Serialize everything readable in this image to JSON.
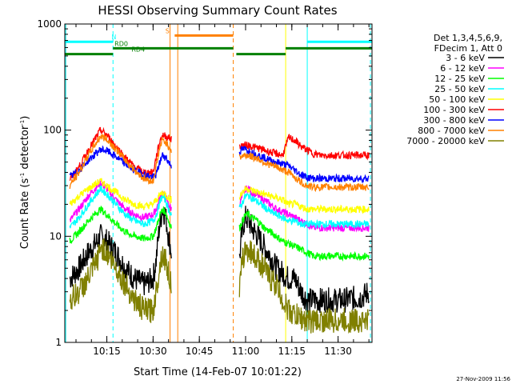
{
  "chart_data": {
    "type": "line",
    "title": "HESSI Observing Summary Count Rates",
    "xlabel": "Start Time (14-Feb-07 10:01:22)",
    "ylabel_main": "Count Rate (s",
    "ylabel_sup1": "-1",
    "ylabel_mid": " detector",
    "ylabel_sup2": "-1",
    "ylabel_end": ")",
    "y_scale": "log",
    "ylim": [
      1,
      1000
    ],
    "xlim": [
      "10:01:22",
      "11:41:00"
    ],
    "x_ticks": [
      {
        "label": "10:15",
        "t": "10:15"
      },
      {
        "label": "10:30",
        "t": "10:30"
      },
      {
        "label": "10:45",
        "t": "10:45"
      },
      {
        "label": "11:00",
        "t": "11:00"
      },
      {
        "label": "11:15",
        "t": "11:15"
      },
      {
        "label": "11:30",
        "t": "11:30"
      }
    ],
    "y_ticks": [
      {
        "label": "1",
        "v": 1
      },
      {
        "label": "10",
        "v": 10
      },
      {
        "label": "100",
        "v": 100
      },
      {
        "label": "1000",
        "v": 1000
      }
    ],
    "legend_header": [
      "Det 1,3,4,5,6,9,",
      "FDecim 1, Att 0"
    ],
    "legend_position": "right",
    "footer_date": "27-Nov-2009 11:56",
    "segments": [
      {
        "start": "10:01:22",
        "end": "10:36:30"
      },
      {
        "start": "10:57:30",
        "end": "11:41:00"
      }
    ],
    "series": [
      {
        "name": "3 - 6 keV",
        "color": "#000000",
        "x": [
          "10:03",
          "10:06",
          "10:09",
          "10:12",
          "10:13",
          "10:15",
          "10:18",
          "10:21",
          "10:24",
          "10:27",
          "10:30",
          "10:31",
          "10:32",
          "10:33",
          "10:34",
          "10:35",
          "10:36",
          "10:58",
          "10:59",
          "11:00",
          "11:01",
          "11:02",
          "11:04",
          "11:06",
          "11:08",
          "11:10",
          "11:12",
          "11:14",
          "11:16",
          "11:18",
          "11:20",
          "11:22",
          "11:24",
          "11:26",
          "11:28",
          "11:30",
          "11:32",
          "11:34",
          "11:36",
          "11:38",
          "11:40"
        ],
        "y": [
          4,
          5,
          7,
          9,
          10,
          9,
          7,
          5,
          4,
          3.5,
          4,
          6,
          12,
          18,
          16,
          10,
          7,
          6,
          12,
          15,
          14,
          12,
          10,
          8,
          6.5,
          5,
          4.5,
          4,
          4,
          3,
          2.5,
          2.5,
          2.5,
          2.5,
          2.5,
          2.5,
          2.5,
          2.6,
          2.6,
          2.7,
          3
        ]
      },
      {
        "name": "6 - 12 keV",
        "color": "#ff00ff",
        "x": [
          "10:03",
          "10:06",
          "10:09",
          "10:12",
          "10:13",
          "10:15",
          "10:18",
          "10:21",
          "10:24",
          "10:27",
          "10:30",
          "10:31",
          "10:32",
          "10:33",
          "10:34",
          "10:35",
          "10:36",
          "10:58",
          "10:59",
          "11:00",
          "11:01",
          "11:02",
          "11:04",
          "11:06",
          "11:08",
          "11:10",
          "11:12",
          "11:14",
          "11:16",
          "11:18",
          "11:20",
          "11:22",
          "11:24",
          "11:26",
          "11:28",
          "11:30",
          "11:32",
          "11:34",
          "11:36",
          "11:38",
          "11:40"
        ],
        "y": [
          14,
          18,
          24,
          30,
          32,
          28,
          22,
          18,
          16,
          15,
          16,
          18,
          22,
          26,
          24,
          20,
          18,
          20,
          24,
          28,
          28,
          26,
          24,
          22,
          20,
          18,
          17,
          16,
          15,
          14,
          13,
          12,
          12,
          12,
          12,
          12,
          12,
          12,
          12,
          12,
          12
        ]
      },
      {
        "name": "12 - 25 keV",
        "color": "#00ff00",
        "x": [
          "10:03",
          "10:06",
          "10:09",
          "10:12",
          "10:13",
          "10:15",
          "10:18",
          "10:21",
          "10:24",
          "10:27",
          "10:30",
          "10:31",
          "10:32",
          "10:33",
          "10:34",
          "10:35",
          "10:36",
          "10:58",
          "10:59",
          "11:00",
          "11:01",
          "11:02",
          "11:04",
          "11:06",
          "11:08",
          "11:10",
          "11:12",
          "11:14",
          "11:16",
          "11:18",
          "11:20",
          "11:22",
          "11:24",
          "11:26",
          "11:28",
          "11:30",
          "11:32",
          "11:34",
          "11:36",
          "11:38",
          "11:40"
        ],
        "y": [
          9,
          11,
          14,
          17,
          18,
          16,
          13,
          11,
          10,
          9.5,
          10,
          12,
          15,
          18,
          17,
          14,
          12,
          12,
          14,
          16,
          16,
          15,
          14,
          12,
          11,
          10,
          9,
          8.5,
          8,
          7.5,
          7,
          6.5,
          6.5,
          6.5,
          6.5,
          6.5,
          6.5,
          6.5,
          6.5,
          6.5,
          6.5
        ]
      },
      {
        "name": "25 - 50 keV",
        "color": "#00ffff",
        "x": [
          "10:03",
          "10:06",
          "10:09",
          "10:12",
          "10:13",
          "10:15",
          "10:18",
          "10:21",
          "10:24",
          "10:27",
          "10:30",
          "10:31",
          "10:32",
          "10:33",
          "10:34",
          "10:35",
          "10:36",
          "10:58",
          "10:59",
          "11:00",
          "11:01",
          "11:02",
          "11:04",
          "11:06",
          "11:08",
          "11:10",
          "11:12",
          "11:14",
          "11:16",
          "11:18",
          "11:20",
          "11:22",
          "11:24",
          "11:26",
          "11:28",
          "11:30",
          "11:32",
          "11:34",
          "11:36",
          "11:38",
          "11:40"
        ],
        "y": [
          12,
          15,
          20,
          26,
          28,
          25,
          20,
          16,
          14,
          13,
          14,
          16,
          20,
          24,
          22,
          18,
          16,
          18,
          21,
          24,
          24,
          23,
          21,
          19,
          17,
          16,
          15,
          14,
          14,
          13,
          13,
          13,
          13,
          13,
          13,
          13,
          13,
          13,
          13,
          13,
          13
        ]
      },
      {
        "name": "50 - 100 keV",
        "color": "#ffff00",
        "x": [
          "10:03",
          "10:06",
          "10:09",
          "10:12",
          "10:13",
          "10:15",
          "10:18",
          "10:21",
          "10:24",
          "10:27",
          "10:30",
          "10:31",
          "10:32",
          "10:33",
          "10:34",
          "10:35",
          "10:36",
          "10:58",
          "10:59",
          "11:00",
          "11:01",
          "11:02",
          "11:04",
          "11:06",
          "11:08",
          "11:10",
          "11:12",
          "11:14",
          "11:16",
          "11:18",
          "11:20",
          "11:22",
          "11:24",
          "11:26",
          "11:28",
          "11:30",
          "11:32",
          "11:34",
          "11:36",
          "11:38",
          "11:40"
        ],
        "y": [
          20,
          24,
          28,
          32,
          33,
          30,
          26,
          22,
          20,
          19,
          20,
          22,
          24,
          26,
          25,
          23,
          22,
          24,
          26,
          28,
          28,
          27,
          26,
          25,
          24,
          23,
          22,
          20,
          20,
          19,
          18,
          18,
          18,
          18,
          18,
          18,
          18,
          18,
          18,
          18,
          18
        ]
      },
      {
        "name": "100 - 300 keV",
        "color": "#ff0000",
        "x": [
          "10:03",
          "10:06",
          "10:09",
          "10:12",
          "10:13",
          "10:15",
          "10:18",
          "10:21",
          "10:24",
          "10:27",
          "10:30",
          "10:31",
          "10:32",
          "10:33",
          "10:34",
          "10:35",
          "10:36",
          "10:58",
          "10:59",
          "11:00",
          "11:01",
          "11:02",
          "11:04",
          "11:06",
          "11:08",
          "11:10",
          "11:12",
          "11:14",
          "11:16",
          "11:18",
          "11:20",
          "11:22",
          "11:24",
          "11:26",
          "11:28",
          "11:30",
          "11:32",
          "11:34",
          "11:36",
          "11:38",
          "11:40"
        ],
        "y": [
          34,
          45,
          65,
          90,
          100,
          90,
          70,
          55,
          45,
          40,
          40,
          55,
          75,
          90,
          88,
          85,
          82,
          70,
          72,
          72,
          72,
          70,
          68,
          65,
          62,
          60,
          58,
          85,
          80,
          70,
          65,
          60,
          58,
          58,
          58,
          58,
          58,
          58,
          58,
          58,
          58
        ]
      },
      {
        "name": "300 - 800 keV",
        "color": "#0000ff",
        "x": [
          "10:03",
          "10:06",
          "10:09",
          "10:12",
          "10:13",
          "10:15",
          "10:18",
          "10:21",
          "10:24",
          "10:27",
          "10:30",
          "10:31",
          "10:32",
          "10:33",
          "10:34",
          "10:35",
          "10:36",
          "10:58",
          "10:59",
          "11:00",
          "11:01",
          "11:02",
          "11:04",
          "11:06",
          "11:08",
          "11:10",
          "11:12",
          "11:14",
          "11:16",
          "11:18",
          "11:20",
          "11:22",
          "11:24",
          "11:26",
          "11:28",
          "11:30",
          "11:32",
          "11:34",
          "11:36",
          "11:38",
          "11:40"
        ],
        "y": [
          36,
          42,
          52,
          62,
          66,
          64,
          56,
          48,
          42,
          38,
          36,
          38,
          48,
          58,
          56,
          50,
          46,
          62,
          66,
          66,
          64,
          62,
          58,
          55,
          52,
          50,
          48,
          46,
          42,
          38,
          36,
          35,
          35,
          35,
          35,
          35,
          35,
          35,
          35,
          35,
          35
        ]
      },
      {
        "name": "800 - 7000 keV",
        "color": "#ff8000",
        "x": [
          "10:03",
          "10:06",
          "10:09",
          "10:12",
          "10:13",
          "10:15",
          "10:18",
          "10:21",
          "10:24",
          "10:27",
          "10:30",
          "10:31",
          "10:32",
          "10:33",
          "10:34",
          "10:35",
          "10:36",
          "10:58",
          "10:59",
          "11:00",
          "11:01",
          "11:02",
          "11:04",
          "11:06",
          "11:08",
          "11:10",
          "11:12",
          "11:14",
          "11:16",
          "11:18",
          "11:20",
          "11:22",
          "11:24",
          "11:26",
          "11:28",
          "11:30",
          "11:32",
          "11:34",
          "11:36",
          "11:38",
          "11:40"
        ],
        "y": [
          30,
          40,
          58,
          80,
          88,
          82,
          66,
          52,
          42,
          35,
          33,
          45,
          65,
          80,
          78,
          70,
          65,
          55,
          57,
          58,
          58,
          56,
          54,
          50,
          47,
          45,
          42,
          40,
          36,
          32,
          30,
          29,
          29,
          29,
          29,
          29,
          29,
          29,
          29,
          29,
          29
        ]
      },
      {
        "name": "7000 - 20000 keV",
        "color": "#808000",
        "x": [
          "10:03",
          "10:06",
          "10:09",
          "10:12",
          "10:13",
          "10:15",
          "10:18",
          "10:21",
          "10:24",
          "10:27",
          "10:30",
          "10:31",
          "10:32",
          "10:33",
          "10:34",
          "10:35",
          "10:36",
          "10:58",
          "10:59",
          "11:00",
          "11:01",
          "11:02",
          "11:04",
          "11:06",
          "11:08",
          "11:10",
          "11:12",
          "11:14",
          "11:16",
          "11:18",
          "11:20",
          "11:22",
          "11:24",
          "11:26",
          "11:28",
          "11:30",
          "11:32",
          "11:34",
          "11:36",
          "11:38",
          "11:40"
        ],
        "y": [
          2.5,
          3,
          4,
          6,
          8,
          7,
          5,
          3.5,
          2.5,
          2,
          2,
          3,
          5,
          7,
          6,
          4.5,
          3.5,
          3,
          6,
          7.5,
          7.5,
          7,
          6,
          5,
          4,
          3.5,
          2.5,
          2,
          1.8,
          1.7,
          1.6,
          1.6,
          1.6,
          1.6,
          1.6,
          1.6,
          1.6,
          1.6,
          1.6,
          1.6,
          1.6
        ]
      }
    ],
    "state_bars": [
      {
        "label": "N",
        "color": "#00ffff",
        "level": 680,
        "from": "10:01:22",
        "to": "10:17:00",
        "label_at": "10:16:30"
      },
      {
        "label": "",
        "color": "#00ffff",
        "level": 680,
        "from": "11:20:00",
        "to": "11:41:00",
        "label_at": ""
      },
      {
        "label": "S",
        "color": "#ff8000",
        "level": 780,
        "from": "10:37:00",
        "to": "10:56:00",
        "label_at": "10:34:00"
      },
      {
        "label": "RD0",
        "color": "#008000",
        "level": 590,
        "from": "10:17:00",
        "to": "10:56:00",
        "label_at": "10:17:30"
      },
      {
        "label": "RD4",
        "color": "#008000",
        "level": 520,
        "from": "10:01:22",
        "to": "10:17:00",
        "label_at": "10:23:00"
      },
      {
        "label": "",
        "color": "#008000",
        "level": 520,
        "from": "10:57:00",
        "to": "11:13:00",
        "label_at": ""
      },
      {
        "label": "",
        "color": "#008000",
        "level": 590,
        "from": "11:13:00",
        "to": "11:41:00",
        "label_at": ""
      }
    ],
    "vlines": [
      {
        "t": "10:01:40",
        "color": "#00ffff",
        "dashed": false
      },
      {
        "t": "10:17:00",
        "color": "#00ffff",
        "dashed": true
      },
      {
        "t": "10:35:30",
        "color": "#ff8000",
        "dashed": false
      },
      {
        "t": "10:38:00",
        "color": "#ff8000",
        "dashed": false
      },
      {
        "t": "10:56:00",
        "color": "#ff8000",
        "dashed": true
      },
      {
        "t": "11:13:00",
        "color": "#ffff00",
        "dashed": false
      },
      {
        "t": "11:20:00",
        "color": "#00ffff",
        "dashed": false
      },
      {
        "t": "11:40:30",
        "color": "#00ffff",
        "dashed": true
      }
    ]
  }
}
